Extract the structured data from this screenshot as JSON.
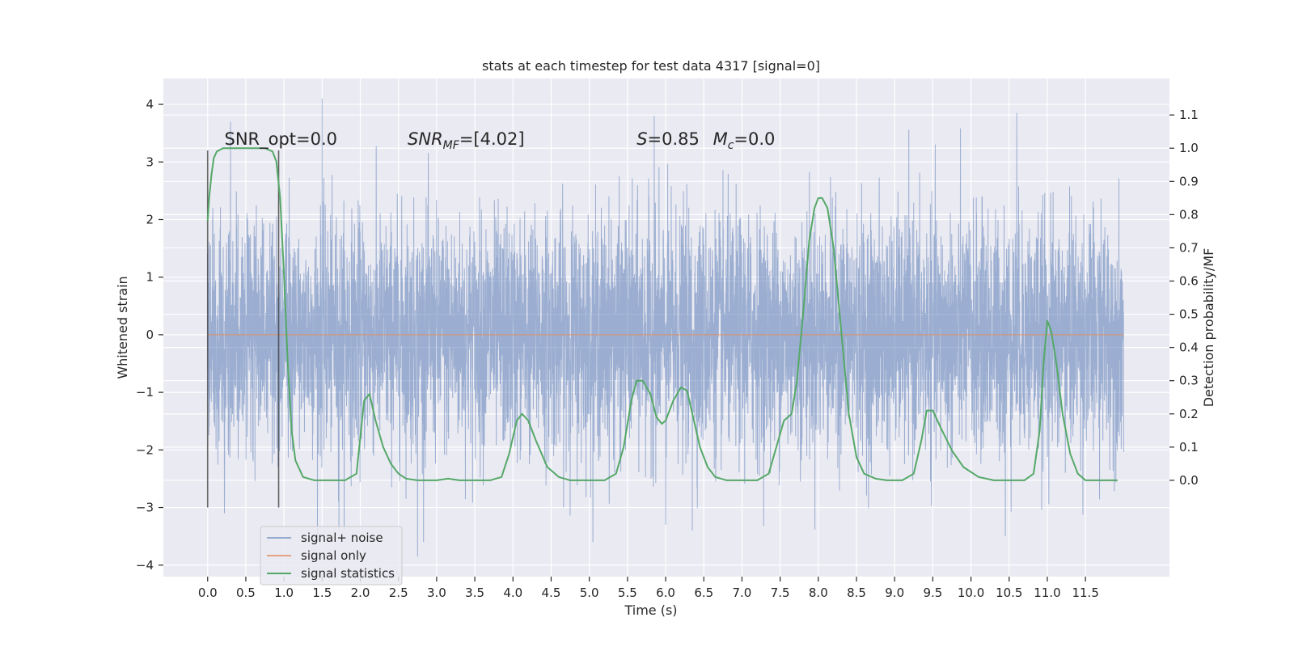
{
  "chart_data": {
    "type": "line",
    "title": "stats at each timestep for test data 4317 [signal=0]",
    "xlabel": "Time (s)",
    "ylabel": "Whitened strain",
    "y2label": "Detection probability/MF",
    "xlim": [
      -0.58,
      12.6
    ],
    "ylim": [
      -4.2,
      4.45
    ],
    "y2lim": [
      -0.29,
      1.21
    ],
    "xticks": [
      "0.0",
      "0.5",
      "1.0",
      "1.5",
      "2.0",
      "2.5",
      "3.0",
      "3.5",
      "4.0",
      "4.5",
      "5.0",
      "5.5",
      "6.0",
      "6.5",
      "7.0",
      "7.5",
      "8.0",
      "8.5",
      "9.0",
      "9.5",
      "10.0",
      "10.5",
      "11.0",
      "11.5"
    ],
    "yticks": [
      "4",
      "3",
      "2",
      "1",
      "0",
      "−1",
      "−2",
      "−3",
      "−4"
    ],
    "y2ticks": [
      "1.1",
      "1.0",
      "0.9",
      "0.8",
      "0.7",
      "0.6",
      "0.5",
      "0.4",
      "0.3",
      "0.2",
      "0.1",
      "0.0"
    ],
    "grid": true,
    "legend_position": "lower-left",
    "annotations": [
      {
        "id": "snr_opt",
        "text": "SNR_opt=0.0",
        "x": 0.22,
        "y": 3.3
      },
      {
        "id": "snr_mf",
        "parts": [
          [
            "SNR",
            "italic"
          ],
          [
            "MF",
            "italic-sub"
          ],
          [
            "=[4.02]",
            "normal"
          ]
        ],
        "x": 2.62,
        "y": 3.3
      },
      {
        "id": "stat_s",
        "parts": [
          [
            "S",
            "italic"
          ],
          [
            "=0.85",
            "normal"
          ]
        ],
        "x": 5.62,
        "y": 3.3
      },
      {
        "id": "stat_mc",
        "parts": [
          [
            "M",
            "italic"
          ],
          [
            "c",
            "italic-sub"
          ],
          [
            "=0.0",
            "normal"
          ]
        ],
        "x": 6.62,
        "y": 3.3
      }
    ],
    "markers": [
      {
        "x": 0.0,
        "y0": -3.0,
        "y1": 3.2
      },
      {
        "x": 0.93,
        "y0": -3.0,
        "y1": 3.2
      }
    ],
    "series": [
      {
        "name": "signal+ noise",
        "color": "#4c72b0",
        "kind": "noise-band",
        "x_range": [
          0.0,
          12.0
        ],
        "samples": 6000,
        "sigma": 1.0,
        "peak_points": [
          [
            0.3,
            3.7
          ],
          [
            1.5,
            4.1
          ],
          [
            5.85,
            3.8
          ],
          [
            10.6,
            3.85
          ],
          [
            2.75,
            -3.85
          ],
          [
            1.72,
            -3.4
          ],
          [
            10.45,
            -3.5
          ],
          [
            6.35,
            -3.4
          ],
          [
            6.0,
            -3.3
          ],
          [
            0.22,
            -3.1
          ]
        ]
      },
      {
        "name": "signal only",
        "color": "#dd8452",
        "x": [
          0.0,
          12.0
        ],
        "y": [
          0.0,
          0.0
        ]
      },
      {
        "name": "signal statistics",
        "color": "#55a868",
        "axis": "right",
        "x": [
          0.0,
          0.02,
          0.05,
          0.08,
          0.12,
          0.2,
          0.3,
          0.45,
          0.6,
          0.75,
          0.85,
          0.9,
          0.95,
          1.0,
          1.05,
          1.1,
          1.15,
          1.25,
          1.4,
          1.6,
          1.8,
          1.95,
          2.05,
          2.12,
          2.2,
          2.3,
          2.4,
          2.5,
          2.6,
          2.75,
          3.0,
          3.15,
          3.3,
          3.5,
          3.7,
          3.85,
          3.95,
          4.05,
          4.12,
          4.2,
          4.3,
          4.45,
          4.6,
          4.75,
          5.0,
          5.2,
          5.35,
          5.45,
          5.55,
          5.62,
          5.7,
          5.8,
          5.88,
          5.95,
          6.0,
          6.1,
          6.2,
          6.28,
          6.35,
          6.45,
          6.55,
          6.65,
          6.8,
          7.0,
          7.2,
          7.35,
          7.45,
          7.55,
          7.65,
          7.72,
          7.8,
          7.88,
          7.95,
          8.0,
          8.05,
          8.12,
          8.2,
          8.3,
          8.4,
          8.5,
          8.6,
          8.75,
          8.9,
          9.1,
          9.25,
          9.35,
          9.42,
          9.5,
          9.6,
          9.75,
          9.9,
          10.1,
          10.3,
          10.5,
          10.7,
          10.82,
          10.9,
          10.95,
          11.0,
          11.05,
          11.12,
          11.2,
          11.3,
          11.4,
          11.5,
          11.7,
          11.92
        ],
        "y": [
          0.78,
          0.85,
          0.92,
          0.97,
          0.99,
          1.0,
          1.0,
          1.0,
          1.0,
          1.0,
          0.99,
          0.96,
          0.85,
          0.62,
          0.35,
          0.15,
          0.06,
          0.01,
          0.0,
          0.0,
          0.0,
          0.02,
          0.24,
          0.26,
          0.18,
          0.1,
          0.05,
          0.02,
          0.005,
          0.0,
          0.0,
          0.005,
          0.0,
          0.0,
          0.0,
          0.01,
          0.08,
          0.18,
          0.2,
          0.18,
          0.12,
          0.04,
          0.01,
          0.0,
          0.0,
          0.0,
          0.02,
          0.1,
          0.24,
          0.3,
          0.3,
          0.26,
          0.19,
          0.17,
          0.18,
          0.24,
          0.28,
          0.27,
          0.2,
          0.1,
          0.04,
          0.01,
          0.0,
          0.0,
          0.0,
          0.02,
          0.1,
          0.18,
          0.2,
          0.3,
          0.5,
          0.72,
          0.82,
          0.85,
          0.85,
          0.82,
          0.7,
          0.45,
          0.2,
          0.07,
          0.02,
          0.005,
          0.0,
          0.0,
          0.02,
          0.12,
          0.21,
          0.21,
          0.16,
          0.09,
          0.04,
          0.01,
          0.0,
          0.0,
          0.0,
          0.02,
          0.15,
          0.35,
          0.48,
          0.45,
          0.35,
          0.2,
          0.08,
          0.02,
          0.0,
          0.0,
          0.0
        ]
      }
    ]
  }
}
